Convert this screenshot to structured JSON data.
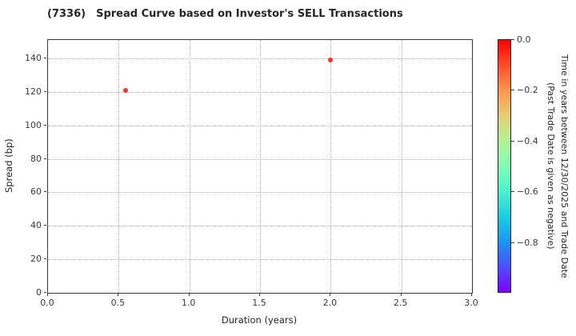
{
  "title": {
    "ticker": "(7336)",
    "text": "Spread Curve based on Investor's SELL Transactions"
  },
  "chart_data": {
    "type": "scatter",
    "title": "(7336)   Spread Curve based on Investor's SELL Transactions",
    "xlabel": "Duration (years)",
    "ylabel": "Spread (bp)",
    "xlim": [
      0.0,
      3.0
    ],
    "ylim": [
      0,
      151
    ],
    "xticks": [
      "0.0",
      "0.5",
      "1.0",
      "1.5",
      "2.0",
      "2.5",
      "3.0"
    ],
    "xtick_values": [
      0,
      0.5,
      1,
      1.5,
      2,
      2.5,
      3
    ],
    "yticks": [
      "0",
      "20",
      "40",
      "60",
      "80",
      "100",
      "120",
      "140"
    ],
    "ytick_values": [
      0,
      20,
      40,
      60,
      80,
      100,
      120,
      140
    ],
    "grid": "dotted",
    "legend": "none",
    "points": [
      {
        "x": 0.55,
        "y": 121,
        "color_value": 0.0,
        "color": "#f23420"
      },
      {
        "x": 2.0,
        "y": 139,
        "color_value": 0.0,
        "color": "#f23420"
      }
    ],
    "colorbar": {
      "label_line1": "Time in years between 12/30/2025 and Trade Date",
      "label_line2": "(Past Trade Date is given as negative)",
      "vmin": -1.0,
      "vmax": 0.0,
      "ticks": [
        "0.0",
        "−0.2",
        "−0.4",
        "−0.6",
        "−0.8"
      ],
      "tick_values": [
        0,
        -0.2,
        -0.4,
        -0.6,
        -0.8
      ],
      "colormap": "rainbow",
      "gradient_stops_top_to_bottom": [
        "#ff0000",
        "#ff4f28",
        "#ff964f",
        "#e6ce74",
        "#b3f296",
        "#80ffb4",
        "#4df2ce",
        "#1acee3",
        "#1a96f2",
        "#4c4ffc",
        "#8000ff"
      ]
    }
  }
}
